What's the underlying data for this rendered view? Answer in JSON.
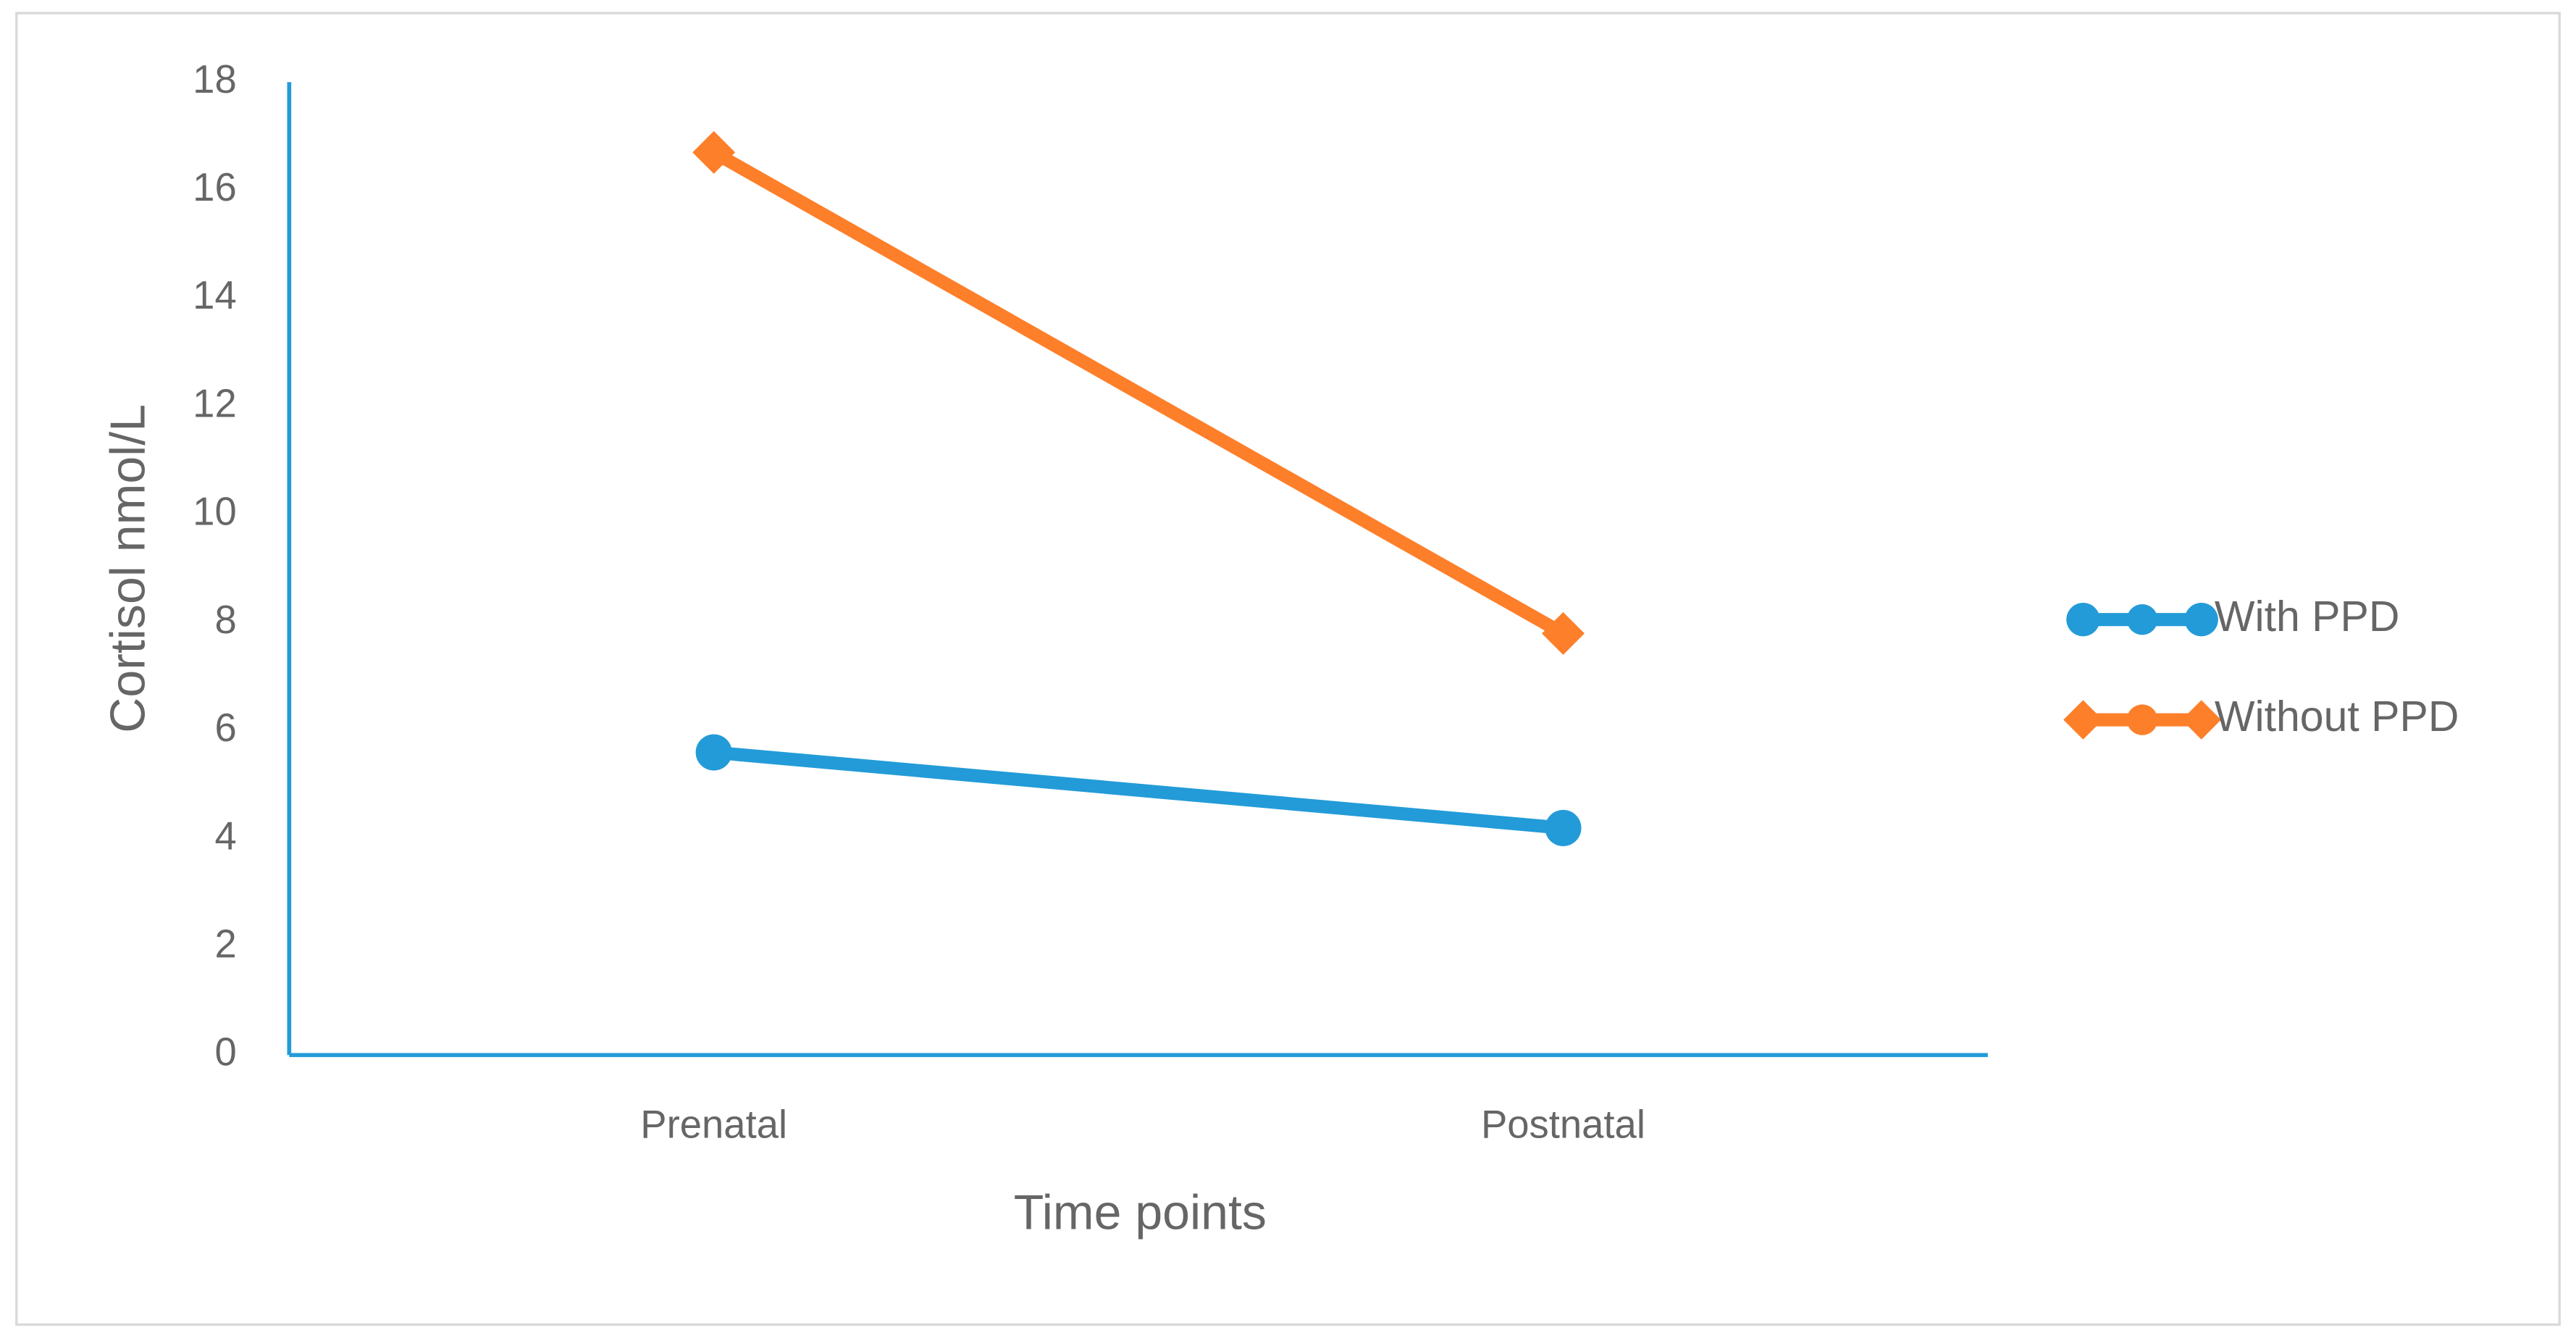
{
  "chart_data": {
    "type": "line",
    "x_label": "Time points",
    "y_label": "Cortisol nmol/L",
    "categories": [
      "Prenatal",
      "Postnatal"
    ],
    "series": [
      {
        "name": "With PPD",
        "color": "#239bd8",
        "marker": "circle",
        "values": [
          5.6,
          4.2
        ]
      },
      {
        "name": "Without PPD",
        "color": "#fd7f2a",
        "marker": "diamond",
        "values": [
          16.7,
          7.8
        ]
      }
    ],
    "ylim": [
      0,
      18
    ],
    "yticks": [
      0,
      2,
      4,
      6,
      8,
      10,
      12,
      14,
      16,
      18
    ],
    "grid": false,
    "legend": "right",
    "axis_color": "#239bd8"
  }
}
